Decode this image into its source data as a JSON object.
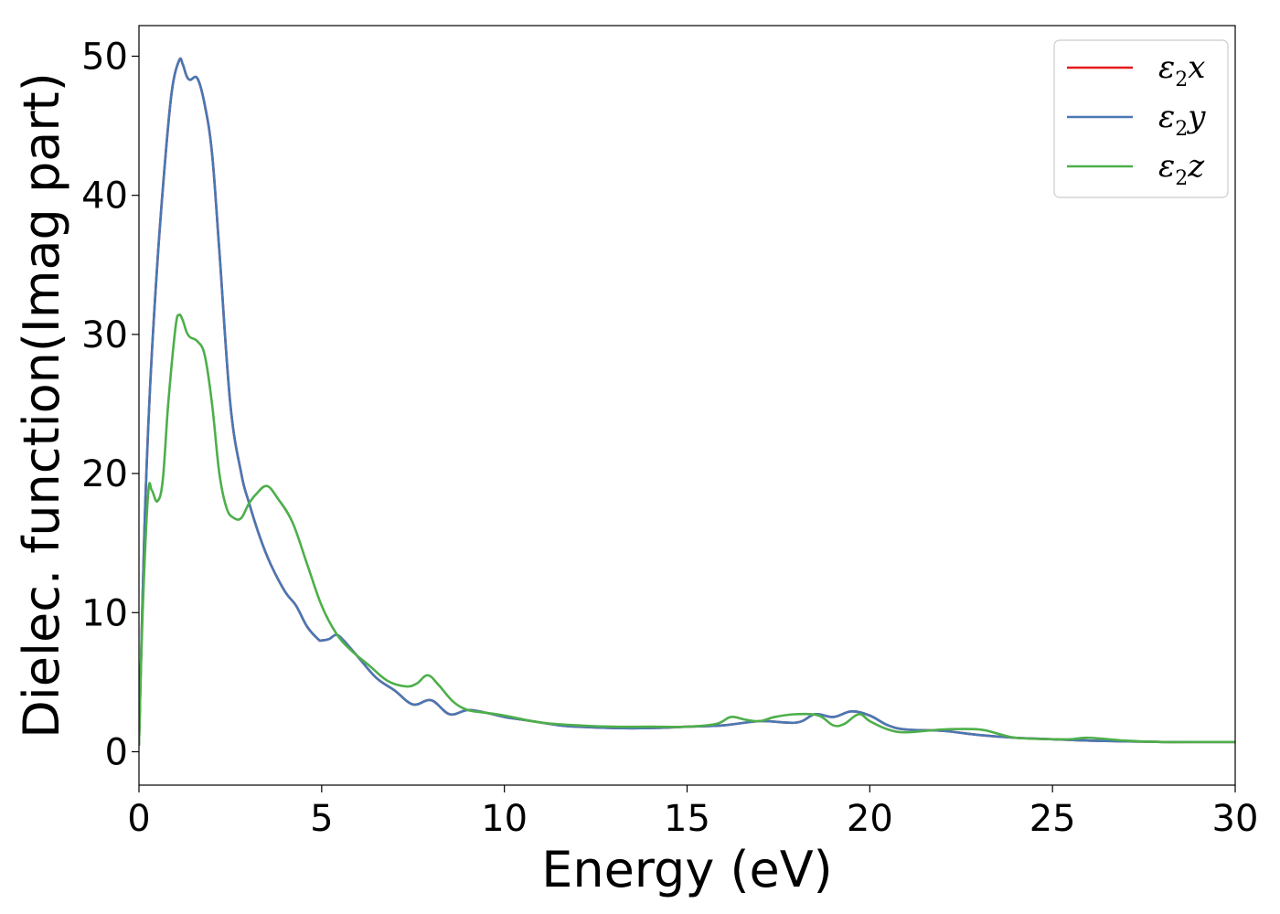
{
  "chart_data": {
    "type": "line",
    "xlabel": "Energy (eV)",
    "ylabel": "Dielec. function(Imag part)",
    "xlim": [
      0,
      30
    ],
    "ylim": [
      -2.4,
      52.2
    ],
    "x_ticks": [
      0,
      5,
      10,
      15,
      20,
      25,
      30
    ],
    "y_ticks": [
      0,
      10,
      20,
      30,
      40,
      50
    ],
    "grid": false,
    "legend_position": "top-right",
    "series": [
      {
        "name": "ε2x",
        "legend": {
          "base": "ε",
          "sub": "2",
          "var": "x"
        },
        "color": "#e41a1c",
        "x": [
          0.0,
          0.15,
          0.3,
          0.5,
          0.7,
          0.9,
          1.1,
          1.2,
          1.3,
          1.4,
          1.6,
          1.8,
          2.0,
          2.2,
          2.5,
          2.8,
          3.0,
          3.3,
          3.6,
          4.0,
          4.3,
          4.6,
          4.9,
          5.0,
          5.2,
          5.4,
          5.6,
          6.0,
          6.5,
          7.0,
          7.5,
          8.0,
          8.5,
          9.0,
          9.5,
          10.0,
          10.5,
          11.0,
          11.5,
          12.0,
          13.0,
          14.0,
          15.0,
          16.0,
          17.0,
          18.0,
          18.5,
          19.0,
          19.5,
          20.0,
          20.5,
          21.0,
          22.0,
          23.0,
          24.0,
          25.0,
          26.0,
          27.0,
          28.0,
          29.0,
          30.0
        ],
        "values": [
          0.5,
          16.0,
          26.0,
          35.0,
          42.0,
          47.5,
          49.7,
          49.4,
          48.6,
          48.3,
          48.4,
          46.5,
          43.0,
          36.0,
          25.0,
          20.0,
          18.0,
          15.5,
          13.5,
          11.5,
          10.5,
          9.0,
          8.1,
          8.0,
          8.1,
          8.4,
          8.0,
          6.8,
          5.3,
          4.4,
          3.4,
          3.7,
          2.7,
          3.0,
          2.8,
          2.5,
          2.3,
          2.1,
          1.9,
          1.8,
          1.7,
          1.7,
          1.8,
          1.9,
          2.2,
          2.1,
          2.7,
          2.5,
          2.9,
          2.6,
          1.9,
          1.6,
          1.5,
          1.2,
          1.0,
          0.9,
          0.8,
          0.75,
          0.7,
          0.7,
          0.7
        ]
      },
      {
        "name": "ε2y",
        "legend": {
          "base": "ε",
          "sub": "2",
          "var": "y"
        },
        "color": "#4878b4",
        "x": [
          0.0,
          0.15,
          0.3,
          0.5,
          0.7,
          0.9,
          1.1,
          1.2,
          1.3,
          1.4,
          1.6,
          1.8,
          2.0,
          2.2,
          2.5,
          2.8,
          3.0,
          3.3,
          3.6,
          4.0,
          4.3,
          4.6,
          4.9,
          5.0,
          5.2,
          5.4,
          5.6,
          6.0,
          6.5,
          7.0,
          7.5,
          8.0,
          8.5,
          9.0,
          9.5,
          10.0,
          10.5,
          11.0,
          11.5,
          12.0,
          13.0,
          14.0,
          15.0,
          16.0,
          17.0,
          18.0,
          18.5,
          19.0,
          19.5,
          20.0,
          20.5,
          21.0,
          22.0,
          23.0,
          24.0,
          25.0,
          26.0,
          27.0,
          28.0,
          29.0,
          30.0
        ],
        "values": [
          0.5,
          16.0,
          26.0,
          35.0,
          42.0,
          47.5,
          49.7,
          49.4,
          48.6,
          48.3,
          48.4,
          46.5,
          43.0,
          36.0,
          25.0,
          20.0,
          18.0,
          15.5,
          13.5,
          11.5,
          10.5,
          9.0,
          8.1,
          8.0,
          8.1,
          8.4,
          8.0,
          6.8,
          5.3,
          4.4,
          3.4,
          3.7,
          2.7,
          3.0,
          2.8,
          2.5,
          2.3,
          2.1,
          1.9,
          1.8,
          1.7,
          1.7,
          1.8,
          1.9,
          2.2,
          2.1,
          2.7,
          2.5,
          2.9,
          2.6,
          1.9,
          1.6,
          1.5,
          1.2,
          1.0,
          0.9,
          0.8,
          0.75,
          0.7,
          0.7,
          0.7
        ]
      },
      {
        "name": "ε2z",
        "legend": {
          "base": "ε",
          "sub": "2",
          "var": "z"
        },
        "color": "#4daf4a",
        "x": [
          0.0,
          0.1,
          0.25,
          0.35,
          0.5,
          0.65,
          0.8,
          1.0,
          1.1,
          1.2,
          1.3,
          1.4,
          1.6,
          1.8,
          2.0,
          2.2,
          2.4,
          2.6,
          2.8,
          3.0,
          3.2,
          3.5,
          3.8,
          4.2,
          4.6,
          5.0,
          5.4,
          5.8,
          6.3,
          6.8,
          7.3,
          7.6,
          7.9,
          8.2,
          8.6,
          9.0,
          9.5,
          10.0,
          11.0,
          12.0,
          13.0,
          14.0,
          15.0,
          15.8,
          16.2,
          16.6,
          17.0,
          17.4,
          18.0,
          18.6,
          19.0,
          19.3,
          19.7,
          20.0,
          20.5,
          21.0,
          22.0,
          23.0,
          23.5,
          24.0,
          25.0,
          25.5,
          26.0,
          27.0,
          28.0,
          29.0,
          30.0
        ],
        "values": [
          0.5,
          10.0,
          18.5,
          18.8,
          18.0,
          19.5,
          25.0,
          30.5,
          31.4,
          31.0,
          30.2,
          29.8,
          29.5,
          28.5,
          25.0,
          20.0,
          17.5,
          16.8,
          16.8,
          17.8,
          18.5,
          19.1,
          18.2,
          16.5,
          13.5,
          10.5,
          8.5,
          7.3,
          6.2,
          5.1,
          4.7,
          4.9,
          5.5,
          4.8,
          3.6,
          3.0,
          2.8,
          2.6,
          2.1,
          1.9,
          1.8,
          1.8,
          1.8,
          2.0,
          2.5,
          2.3,
          2.2,
          2.5,
          2.7,
          2.6,
          1.9,
          2.0,
          2.7,
          2.2,
          1.6,
          1.4,
          1.6,
          1.6,
          1.3,
          1.0,
          0.9,
          0.9,
          1.0,
          0.8,
          0.7,
          0.7,
          0.7
        ]
      }
    ]
  }
}
